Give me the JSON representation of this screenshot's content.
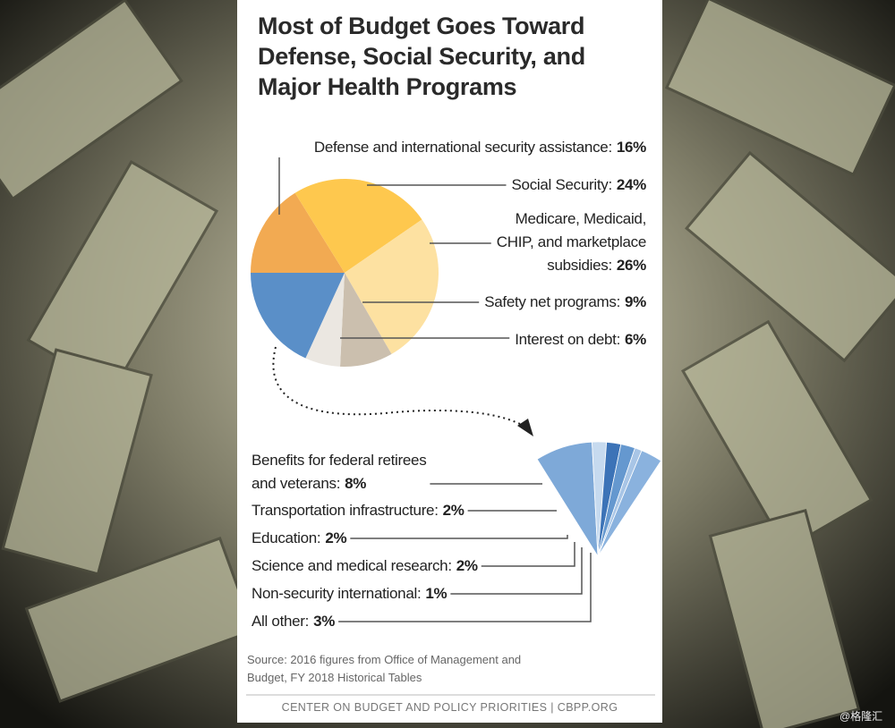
{
  "chart_data": [
    {
      "type": "pie",
      "title": "Most of Budget Goes Toward\nDefense, Social Security, and\nMajor Health Programs",
      "categories": [
        "Defense and international security assistance:",
        "Social Security:",
        "Medicare, Medicaid,\nCHIP, and marketplace\nsubsidies:",
        "Safety net programs:",
        "Interest on debt:"
      ],
      "values": [
        16,
        24,
        26,
        9,
        6
      ],
      "value_labels": [
        "16%",
        "24%",
        "26%",
        "9%",
        "6%"
      ],
      "colors": [
        "#f2aa52",
        "#fec84e",
        "#fde1a1",
        "#cbbfae",
        "#ebe7e1"
      ]
    },
    {
      "type": "fan",
      "categories": [
        "Benefits for federal retirees\nand veterans:",
        "Transportation infrastructure:",
        "Education:",
        "Science and medical research:",
        "Non-security international:",
        "All other:"
      ],
      "values": [
        8,
        2,
        2,
        2,
        1,
        3
      ],
      "value_labels": [
        "8%",
        "2%",
        "2%",
        "2%",
        "1%",
        "3%"
      ],
      "colors": [
        "#7ea9d8",
        "#c6daef",
        "#3c73b7",
        "#6598cf",
        "#a8c5e6",
        "#8ab2de"
      ]
    }
  ],
  "source": "Source: 2016 figures from Office of Management and\nBudget, FY 2018 Historical Tables",
  "footer": "CENTER ON BUDGET AND POLICY PRIORITIES | CBPP.ORG",
  "watermark": "@格隆汇"
}
